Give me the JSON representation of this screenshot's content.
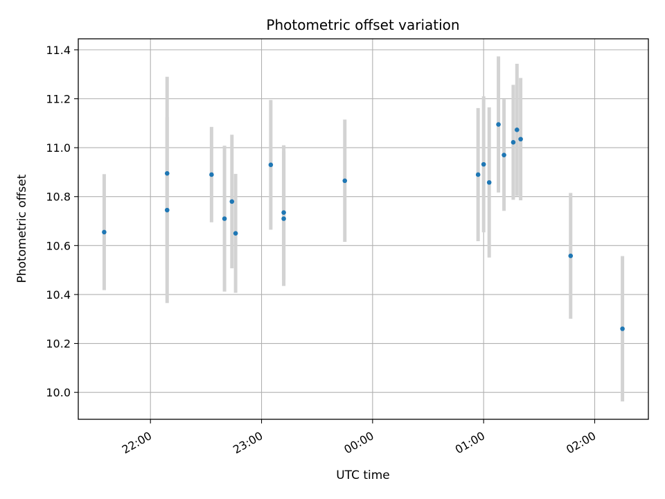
{
  "chart_data": {
    "type": "scatter",
    "title": "Photometric offset variation",
    "xlabel": "UTC time",
    "ylabel": "Photometric offset",
    "x_is_time": true,
    "xlim": [
      "21:21",
      "02:29"
    ],
    "ylim": [
      9.89,
      11.445
    ],
    "x_ticks": [
      "22:00",
      "23:00",
      "00:00",
      "01:00",
      "02:00"
    ],
    "y_ticks": [
      10.0,
      10.2,
      10.4,
      10.6,
      10.8,
      11.0,
      11.2,
      11.4
    ],
    "y_tick_labels": [
      "10.0",
      "10.2",
      "10.4",
      "10.6",
      "10.8",
      "11.0",
      "11.2",
      "11.4"
    ],
    "grid": true,
    "point_color": "#1f77b4",
    "errorbar_color": "#d3d3d3",
    "points": [
      {
        "t": "21:35",
        "y": 10.655,
        "yerr": 0.237
      },
      {
        "t": "22:09",
        "y": 10.745,
        "yerr": 0.38
      },
      {
        "t": "22:09",
        "y": 10.895,
        "yerr": 0.395
      },
      {
        "t": "22:33",
        "y": 10.89,
        "yerr": 0.195
      },
      {
        "t": "22:40",
        "y": 10.71,
        "yerr": 0.298
      },
      {
        "t": "22:44",
        "y": 10.78,
        "yerr": 0.273
      },
      {
        "t": "22:46",
        "y": 10.65,
        "yerr": 0.243
      },
      {
        "t": "23:05",
        "y": 10.93,
        "yerr": 0.265
      },
      {
        "t": "23:12",
        "y": 10.735,
        "yerr": 0.275
      },
      {
        "t": "23:12",
        "y": 10.71,
        "yerr": 0.275
      },
      {
        "t": "23:45",
        "y": 10.865,
        "yerr": 0.25
      },
      {
        "t": "00:57",
        "y": 10.89,
        "yerr": 0.272
      },
      {
        "t": "01:00",
        "y": 10.932,
        "yerr": 0.278
      },
      {
        "t": "01:03",
        "y": 10.858,
        "yerr": 0.307
      },
      {
        "t": "01:08",
        "y": 11.095,
        "yerr": 0.278
      },
      {
        "t": "01:11",
        "y": 10.97,
        "yerr": 0.228
      },
      {
        "t": "01:16",
        "y": 11.022,
        "yerr": 0.235
      },
      {
        "t": "01:18",
        "y": 11.073,
        "yerr": 0.27
      },
      {
        "t": "01:20",
        "y": 11.035,
        "yerr": 0.25
      },
      {
        "t": "01:47",
        "y": 10.558,
        "yerr": 0.257
      },
      {
        "t": "02:15",
        "y": 10.26,
        "yerr": 0.297
      }
    ]
  }
}
